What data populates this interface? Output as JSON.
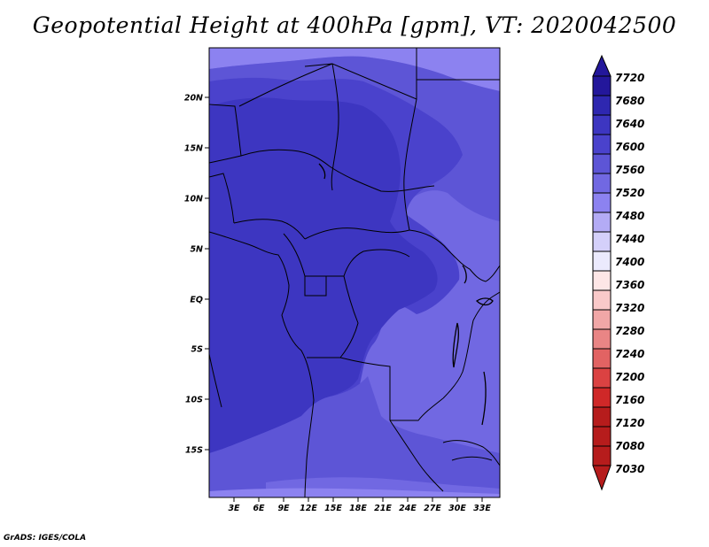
{
  "title": "Geopotential Height at 400hPa [gpm], VT: 2020042500",
  "credit": "GrADS: IGES/COLA",
  "map": {
    "lat_labels": [
      "20N",
      "15N",
      "10N",
      "5N",
      "EQ",
      "5S",
      "10S",
      "15S"
    ],
    "lon_labels": [
      "3E",
      "6E",
      "9E",
      "12E",
      "15E",
      "18E",
      "21E",
      "24E",
      "27E",
      "30E",
      "33E"
    ],
    "fill_colors": {
      "z7480": "#8c82f0",
      "z7520": "#7168e2",
      "z7560": "#5d55d6",
      "z7600": "#4a42cc",
      "z7640": "#3d36c1"
    }
  },
  "colorbar": {
    "levels": [
      "7720",
      "7680",
      "7640",
      "7600",
      "7560",
      "7520",
      "7480",
      "7440",
      "7400",
      "7360",
      "7320",
      "7280",
      "7240",
      "7200",
      "7160",
      "7120",
      "7080",
      "7030"
    ],
    "colors": [
      "#23179b",
      "#2e27b0",
      "#3d36c1",
      "#4a42cc",
      "#5d55d6",
      "#7168e2",
      "#8c82f0",
      "#b3abf5",
      "#d4d0fa",
      "#ebeafd",
      "#fde6e6",
      "#f9c9c9",
      "#f1a7a7",
      "#e98585",
      "#e26363",
      "#db4242",
      "#cf2828",
      "#b61c1c"
    ]
  }
}
